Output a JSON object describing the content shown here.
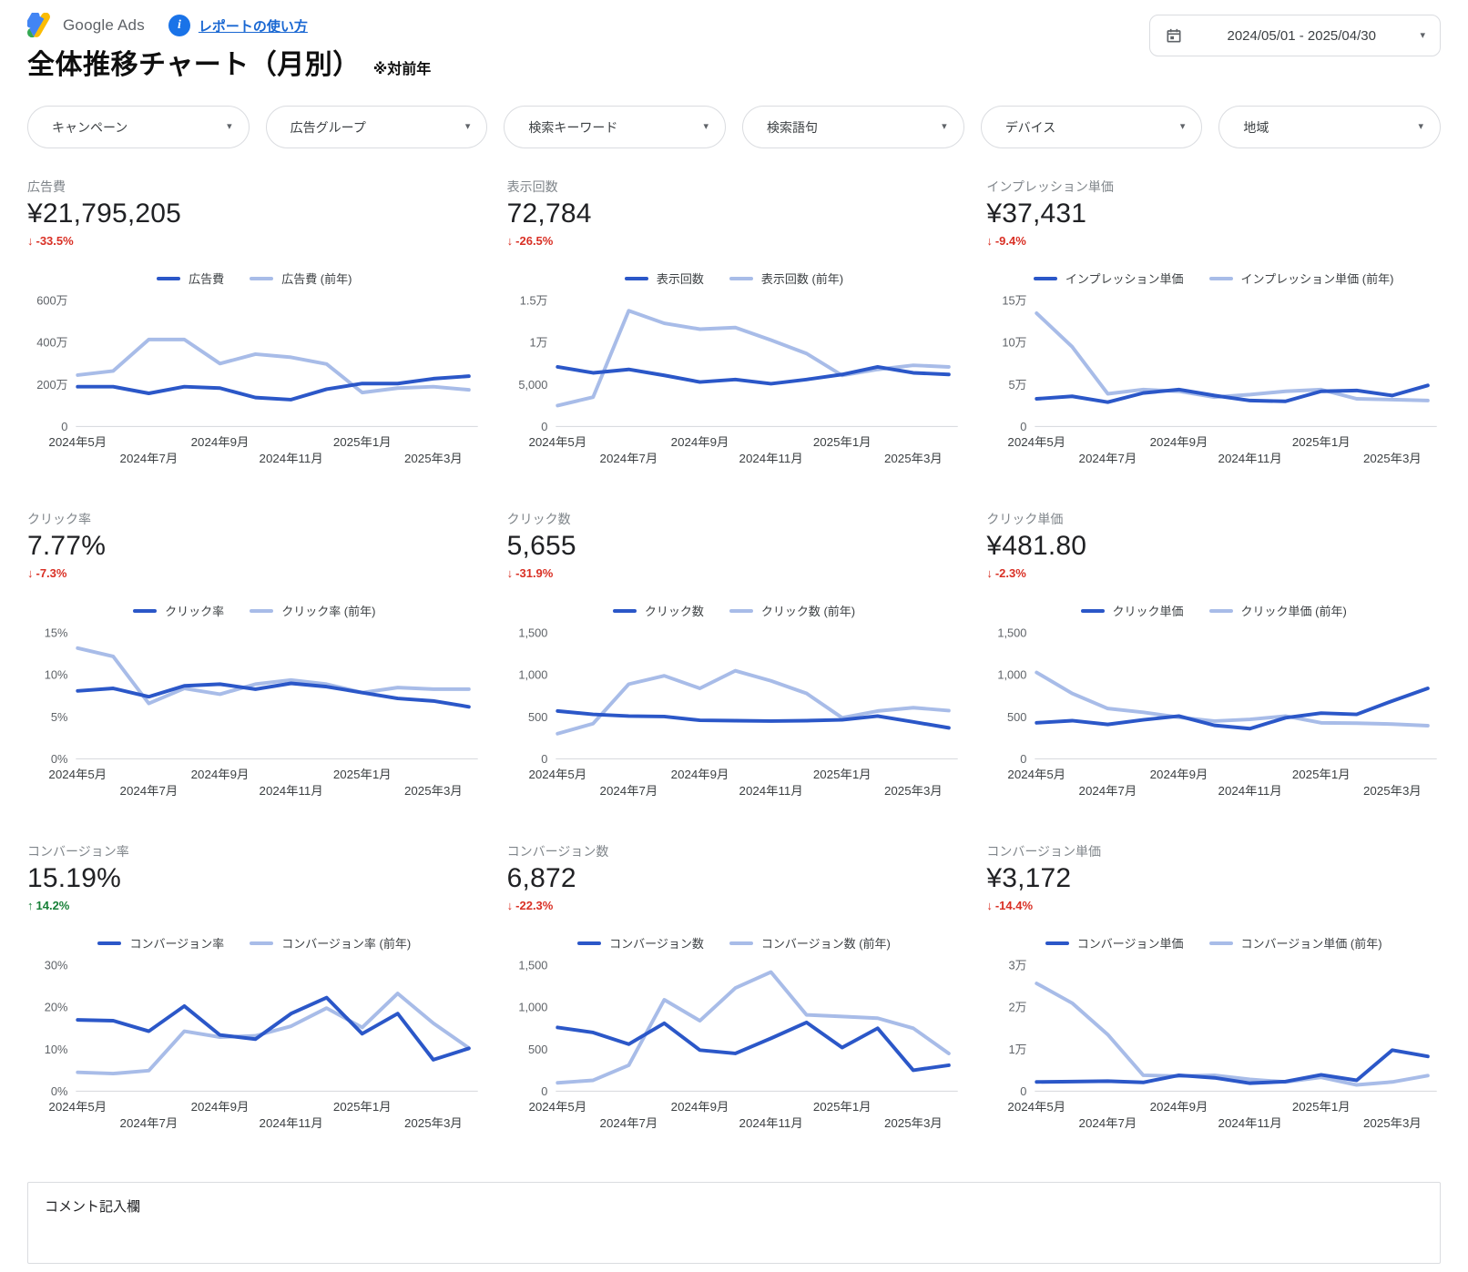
{
  "header": {
    "brand": "Google Ads",
    "help_link": "レポートの使い方",
    "title": "全体推移チャート（月別）",
    "title_note": "※対前年",
    "date_range": "2024/05/01 - 2025/04/30"
  },
  "filters": [
    {
      "name": "campaign",
      "label": "キャンペーン"
    },
    {
      "name": "ad-group",
      "label": "広告グループ"
    },
    {
      "name": "search-keyword",
      "label": "検索キーワード"
    },
    {
      "name": "search-term",
      "label": "検索語句"
    },
    {
      "name": "device",
      "label": "デバイス"
    },
    {
      "name": "region",
      "label": "地域"
    }
  ],
  "colors": {
    "current": "#2b57c8",
    "previous": "#a8bce8",
    "delta_down": "#d93025",
    "delta_up": "#188038",
    "axis_text": "#5f6368",
    "baseline": "#dadce0"
  },
  "categories": [
    "2024年5月",
    "2024年6月",
    "2024年7月",
    "2024年8月",
    "2024年9月",
    "2024年10月",
    "2024年11月",
    "2024年12月",
    "2025年1月",
    "2025年2月",
    "2025年3月",
    "2025年4月"
  ],
  "x_tick_labels": [
    "2024年5月",
    "2024年7月",
    "2024年9月",
    "2024年11月",
    "2025年1月",
    "2025年3月"
  ],
  "chart_data": [
    {
      "type": "line",
      "metric": "広告費",
      "value": "¥21,795,205",
      "delta": "-33.5%",
      "delta_dir": "down",
      "arrow": "↓",
      "legend": [
        "広告費",
        "広告費 (前年)"
      ],
      "ylim": [
        0,
        6000000
      ],
      "y_ticks": [
        "0",
        "200万",
        "400万",
        "600万"
      ],
      "series": [
        {
          "name": "広告費",
          "values": [
            1900000,
            1900000,
            1580000,
            1900000,
            1830000,
            1380000,
            1280000,
            1780000,
            2050000,
            2050000,
            2280000,
            2400000
          ]
        },
        {
          "name": "広告費 (前年)",
          "values": [
            2450000,
            2650000,
            4150000,
            4150000,
            3000000,
            3450000,
            3300000,
            2980000,
            1620000,
            1830000,
            1900000,
            1750000
          ]
        }
      ]
    },
    {
      "type": "line",
      "metric": "表示回数",
      "value": "72,784",
      "delta": "-26.5%",
      "delta_dir": "down",
      "arrow": "↓",
      "legend": [
        "表示回数",
        "表示回数 (前年)"
      ],
      "ylim": [
        0,
        15000
      ],
      "y_ticks": [
        "0",
        "5,000",
        "1万",
        "1.5万"
      ],
      "series": [
        {
          "name": "表示回数",
          "values": [
            7100,
            6400,
            6800,
            6100,
            5300,
            5600,
            5100,
            5600,
            6200,
            7100,
            6400,
            6200
          ]
        },
        {
          "name": "表示回数 (前年)",
          "values": [
            2500,
            3500,
            13800,
            12300,
            11600,
            11800,
            10300,
            8700,
            6100,
            6800,
            7300,
            7100
          ]
        }
      ]
    },
    {
      "type": "line",
      "metric": "インプレッション単価",
      "value": "¥37,431",
      "delta": "-9.4%",
      "delta_dir": "down",
      "arrow": "↓",
      "legend": [
        "インプレッション単価",
        "インプレッション単価 (前年)"
      ],
      "ylim": [
        0,
        150000
      ],
      "y_ticks": [
        "0",
        "5万",
        "10万",
        "15万"
      ],
      "series": [
        {
          "name": "インプレッション単価",
          "values": [
            33000,
            36000,
            29000,
            40000,
            44000,
            37000,
            31000,
            30000,
            42000,
            43000,
            37000,
            49000
          ]
        },
        {
          "name": "インプレッション単価 (前年)",
          "values": [
            135000,
            95000,
            39000,
            44000,
            42000,
            35000,
            38000,
            42000,
            44000,
            33000,
            32000,
            31000
          ]
        }
      ]
    },
    {
      "type": "line",
      "metric": "クリック率",
      "value": "7.77%",
      "delta": "-7.3%",
      "delta_dir": "down",
      "arrow": "↓",
      "legend": [
        "クリック率",
        "クリック率 (前年)"
      ],
      "ylim": [
        0,
        15
      ],
      "y_ticks": [
        "0%",
        "5%",
        "10%",
        "15%"
      ],
      "series": [
        {
          "name": "クリック率",
          "values": [
            8.1,
            8.4,
            7.4,
            8.7,
            8.9,
            8.3,
            9.0,
            8.6,
            7.9,
            7.2,
            6.9,
            6.2
          ]
        },
        {
          "name": "クリック率 (前年)",
          "values": [
            13.2,
            12.2,
            6.6,
            8.4,
            7.7,
            8.9,
            9.4,
            8.9,
            7.9,
            8.5,
            8.3,
            8.3
          ]
        }
      ]
    },
    {
      "type": "line",
      "metric": "クリック数",
      "value": "5,655",
      "delta": "-31.9%",
      "delta_dir": "down",
      "arrow": "↓",
      "legend": [
        "クリック数",
        "クリック数 (前年)"
      ],
      "ylim": [
        0,
        1500
      ],
      "y_ticks": [
        "0",
        "500",
        "1,000",
        "1,500"
      ],
      "series": [
        {
          "name": "クリック数",
          "values": [
            570,
            530,
            510,
            505,
            460,
            455,
            450,
            455,
            465,
            510,
            440,
            370
          ]
        },
        {
          "name": "クリック数 (前年)",
          "values": [
            300,
            420,
            890,
            990,
            840,
            1050,
            930,
            780,
            490,
            570,
            610,
            575
          ]
        }
      ]
    },
    {
      "type": "line",
      "metric": "クリック単価",
      "value": "¥481.80",
      "delta": "-2.3%",
      "delta_dir": "down",
      "arrow": "↓",
      "legend": [
        "クリック単価",
        "クリック単価 (前年)"
      ],
      "ylim": [
        0,
        1500
      ],
      "y_ticks": [
        "0",
        "500",
        "1,000",
        "1,500"
      ],
      "series": [
        {
          "name": "クリック単価",
          "values": [
            430,
            455,
            410,
            465,
            510,
            400,
            360,
            490,
            545,
            530,
            690,
            840
          ]
        },
        {
          "name": "クリック単価 (前年)",
          "values": [
            1030,
            780,
            600,
            555,
            495,
            450,
            470,
            510,
            430,
            425,
            415,
            395
          ]
        }
      ]
    },
    {
      "type": "line",
      "metric": "コンバージョン率",
      "value": "15.19%",
      "delta": "14.2%",
      "delta_dir": "up",
      "arrow": "↑",
      "legend": [
        "コンバージョン率",
        "コンバージョン率 (前年)"
      ],
      "ylim": [
        0,
        30
      ],
      "y_ticks": [
        "0%",
        "10%",
        "20%",
        "30%"
      ],
      "series": [
        {
          "name": "コンバージョン率",
          "values": [
            17.0,
            16.8,
            14.3,
            20.3,
            13.4,
            12.4,
            18.5,
            22.3,
            13.7,
            18.5,
            7.5,
            10.2
          ]
        },
        {
          "name": "コンバージョン率 (前年)",
          "values": [
            4.5,
            4.2,
            4.9,
            14.3,
            12.9,
            13.2,
            15.5,
            19.8,
            15.2,
            23.3,
            16.2,
            10.3
          ]
        }
      ]
    },
    {
      "type": "line",
      "metric": "コンバージョン数",
      "value": "6,872",
      "delta": "-22.3%",
      "delta_dir": "down",
      "arrow": "↓",
      "legend": [
        "コンバージョン数",
        "コンバージョン数 (前年)"
      ],
      "ylim": [
        0,
        1500
      ],
      "y_ticks": [
        "0",
        "500",
        "1,000",
        "1,500"
      ],
      "series": [
        {
          "name": "コンバージョン数",
          "values": [
            760,
            700,
            560,
            810,
            490,
            450,
            630,
            820,
            520,
            750,
            250,
            310
          ]
        },
        {
          "name": "コンバージョン数 (前年)",
          "values": [
            100,
            130,
            310,
            1090,
            840,
            1230,
            1420,
            910,
            890,
            870,
            750,
            450
          ]
        }
      ]
    },
    {
      "type": "line",
      "metric": "コンバージョン単価",
      "value": "¥3,172",
      "delta": "-14.4%",
      "delta_dir": "down",
      "arrow": "↓",
      "legend": [
        "コンバージョン単価",
        "コンバージョン単価 (前年)"
      ],
      "ylim": [
        0,
        30000
      ],
      "y_ticks": [
        "0",
        "1万",
        "2万",
        "3万"
      ],
      "series": [
        {
          "name": "コンバージョン単価",
          "values": [
            2200,
            2300,
            2400,
            2100,
            3800,
            3200,
            1900,
            2300,
            3900,
            2600,
            9800,
            8300
          ]
        },
        {
          "name": "コンバージョン単価 (前年)",
          "values": [
            25700,
            21000,
            13500,
            3800,
            3600,
            3800,
            2800,
            2200,
            3300,
            1500,
            2200,
            3700
          ]
        }
      ]
    }
  ],
  "comment": {
    "label": "コメント記入欄"
  }
}
